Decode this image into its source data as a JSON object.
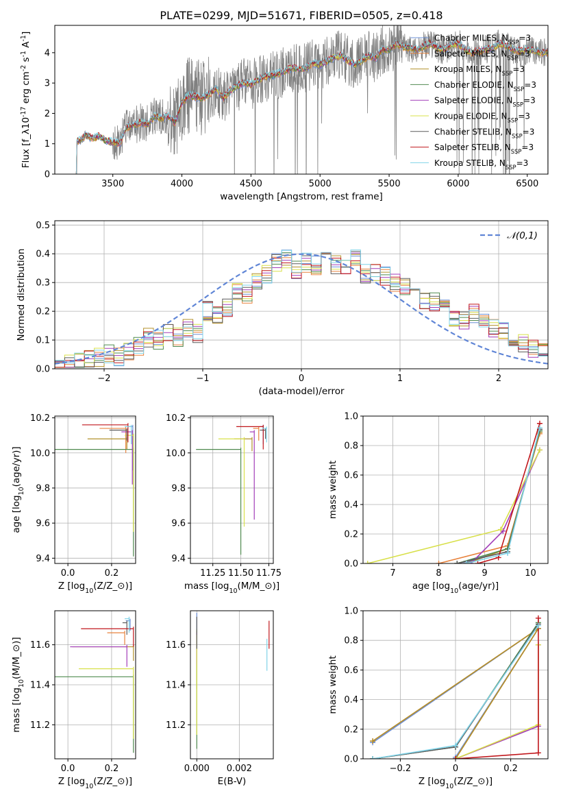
{
  "title": "PLATE=0299, MJD=51671, FIBERID=0505, z=0.418",
  "colors": {
    "models": [
      "#6b8fd6",
      "#e8823c",
      "#b3902a",
      "#4f8a4f",
      "#a13bb8",
      "#d8e04a",
      "#5a5a5a",
      "#c0161b",
      "#7fd3e8"
    ],
    "data_gray": "#808080",
    "normal_curve": "#5f85d6",
    "grid": "#b0b0b0"
  },
  "legend_spectrum": [
    "Chabrier MILES, N$_{SSP}$=3",
    "Salpeter MILES, N$_{SSP}$=3",
    "Kroupa MILES, N$_{SSP}$=3",
    "Chabrier ELODIE, N$_{SSP}$=3",
    "Salpeter ELODIE, N$_{SSP}$=3",
    "Kroupa ELODIE, N$_{SSP}$=3",
    "Chabrier STELIB, N$_{SSP}$=3",
    "Salpeter STELIB, N$_{SSP}$=3",
    "Kroupa STELIB, N$_{SSP}$=3"
  ],
  "legend_hist": "$\\mathcal{N}(0,1)$",
  "chart_data": [
    {
      "type": "line",
      "panel": "spectrum",
      "xlabel": "wavelength [Angstrom, rest frame]",
      "ylabel": "Flux [f$_\\lambda$10$^{-17}$ erg cm$^{-2}$ s$^{-1}$ A$^{-1}$]",
      "xlim": [
        3080,
        6650
      ],
      "ylim": [
        0,
        4.9
      ],
      "xticks": [
        3500,
        4000,
        4500,
        5000,
        5500,
        6000,
        6500
      ],
      "yticks": [
        0,
        1,
        2,
        3,
        4
      ],
      "model_continuum": {
        "x": [
          3230,
          3280,
          3300,
          3350,
          3400,
          3450,
          3500,
          3550,
          3600,
          3650,
          3700,
          3750,
          3800,
          3850,
          3900,
          3950,
          4000,
          4050,
          4100,
          4150,
          4200,
          4250,
          4300,
          4350,
          4400,
          4450,
          4500,
          4550,
          4600,
          4650,
          4700,
          4750,
          4800,
          4850,
          4900,
          4950,
          5000,
          5050,
          5100,
          5150,
          5200,
          5250,
          5300,
          5350,
          5400,
          5450,
          5500,
          5550,
          5600,
          5650,
          5700,
          5750,
          5800,
          5850,
          5900,
          5950,
          6000,
          6050,
          6100,
          6150,
          6200,
          6250,
          6300,
          6350,
          6400,
          6450,
          6500,
          6550,
          6600,
          6650
        ],
        "y": [
          1.05,
          1.15,
          1.3,
          1.18,
          1.25,
          1.1,
          1.05,
          1.0,
          1.55,
          1.6,
          1.7,
          1.65,
          1.9,
          1.85,
          1.9,
          1.7,
          2.35,
          2.6,
          2.55,
          2.5,
          2.65,
          2.8,
          2.5,
          2.75,
          2.9,
          3.0,
          2.95,
          3.1,
          3.2,
          3.25,
          3.3,
          3.4,
          3.5,
          3.45,
          3.5,
          3.65,
          3.6,
          3.7,
          3.85,
          3.9,
          3.75,
          3.6,
          3.7,
          3.9,
          3.8,
          4.1,
          4.1,
          4.3,
          4.2,
          4.15,
          4.1,
          4.2,
          4.3,
          4.15,
          4.1,
          4.25,
          4.3,
          4.1,
          4.0,
          4.05,
          4.1,
          4.15,
          4.3,
          4.2,
          4.1,
          4.05,
          4.1,
          4.05,
          4.0,
          4.0
        ]
      }
    },
    {
      "type": "line",
      "panel": "residual-histogram",
      "xlabel": "(data-model)/error",
      "ylabel": "Normed distribution",
      "xlim": [
        -2.5,
        2.5
      ],
      "ylim": [
        0,
        0.515
      ],
      "xticks": [
        -2,
        -1,
        0,
        1,
        2
      ],
      "yticks": [
        0.0,
        0.1,
        0.2,
        0.3,
        0.4,
        0.5
      ],
      "bin_width": 0.1,
      "hist_base": {
        "x": [
          -2.5,
          -2.4,
          -2.3,
          -2.2,
          -2.1,
          -2.0,
          -1.9,
          -1.8,
          -1.7,
          -1.6,
          -1.5,
          -1.4,
          -1.3,
          -1.2,
          -1.1,
          -1.0,
          -0.9,
          -0.8,
          -0.7,
          -0.6,
          -0.5,
          -0.4,
          -0.3,
          -0.2,
          -0.1,
          0.0,
          0.1,
          0.2,
          0.3,
          0.4,
          0.5,
          0.6,
          0.7,
          0.8,
          0.9,
          1.0,
          1.1,
          1.2,
          1.3,
          1.4,
          1.5,
          1.6,
          1.7,
          1.8,
          1.9,
          2.0,
          2.1,
          2.2,
          2.3,
          2.4
        ],
        "y": [
          0.02,
          0.02,
          0.03,
          0.04,
          0.04,
          0.05,
          0.04,
          0.06,
          0.08,
          0.11,
          0.1,
          0.12,
          0.11,
          0.14,
          0.12,
          0.2,
          0.18,
          0.21,
          0.27,
          0.26,
          0.31,
          0.33,
          0.37,
          0.38,
          0.34,
          0.37,
          0.36,
          0.42,
          0.36,
          0.35,
          0.38,
          0.33,
          0.33,
          0.32,
          0.3,
          0.29,
          0.27,
          0.24,
          0.23,
          0.22,
          0.18,
          0.17,
          0.19,
          0.16,
          0.14,
          0.13,
          0.1,
          0.09,
          0.07,
          0.06
        ]
      },
      "normal_curve": "N(0,1)"
    },
    {
      "type": "scatter",
      "panel": "age-vs-Z",
      "xlabel": "Z [log$_{10}$($Z/Z_\\odot$)]",
      "ylabel": "age  [log$_{10}$($age/yr$)]",
      "xlim": [
        -0.06,
        0.31
      ],
      "ylim": [
        9.37,
        10.21
      ],
      "xticks": [
        0.0,
        0.2
      ],
      "yticks": [
        9.4,
        9.6,
        9.8,
        10.0,
        10.2
      ],
      "points": [
        {
          "x": 0.297,
          "y": 10.15,
          "xerr_lo": 0.02,
          "yerr_lo": 0.25
        },
        {
          "x": 0.265,
          "y": 10.14,
          "xerr_lo": 0.12,
          "yerr_lo": 0.14
        },
        {
          "x": 0.27,
          "y": 10.08,
          "xerr_lo": 0.18,
          "yerr_lo": 0.06
        },
        {
          "x": 0.3,
          "y": 10.02,
          "xerr_lo": 0.36,
          "yerr_lo": 0.61
        },
        {
          "x": 0.295,
          "y": 10.12,
          "xerr_lo": 0.05,
          "yerr_lo": 0.3
        },
        {
          "x": 0.3,
          "y": 10.1,
          "xerr_lo": 0.04,
          "yerr_lo": 0.55
        },
        {
          "x": 0.27,
          "y": 10.13,
          "xerr_lo": 0.08,
          "yerr_lo": 0.06
        },
        {
          "x": 0.275,
          "y": 10.16,
          "xerr_lo": 0.21,
          "yerr_lo": 0.1
        },
        {
          "x": 0.29,
          "y": 10.15,
          "xerr_lo": 0.03,
          "yerr_lo": 0.1
        }
      ]
    },
    {
      "type": "scatter",
      "panel": "age-vs-mass",
      "xlabel": "mass [log$_{10}$($M/M_\\odot$)]",
      "xlim": [
        11.05,
        11.79
      ],
      "ylim": [
        9.37,
        10.21
      ],
      "xticks": [
        11.25,
        11.5,
        11.75
      ],
      "yticks": [
        9.4,
        9.6,
        9.8,
        10.0,
        10.2
      ],
      "points": [
        {
          "x": 11.7,
          "y": 10.15,
          "xerr_lo": 0.03,
          "yerr_lo": 0.1
        },
        {
          "x": 11.66,
          "y": 10.14,
          "xerr_lo": 0.05,
          "yerr_lo": 0.07
        },
        {
          "x": 11.6,
          "y": 10.08,
          "xerr_lo": 0.16,
          "yerr_lo": 0.07
        },
        {
          "x": 11.5,
          "y": 10.02,
          "xerr_lo": 0.4,
          "yerr_lo": 0.6
        },
        {
          "x": 11.62,
          "y": 10.12,
          "xerr_lo": 0.04,
          "yerr_lo": 0.5
        },
        {
          "x": 11.53,
          "y": 10.08,
          "xerr_lo": 0.23,
          "yerr_lo": 0.5
        },
        {
          "x": 11.72,
          "y": 10.13,
          "xerr_lo": 0.05,
          "yerr_lo": 0.05
        },
        {
          "x": 11.7,
          "y": 10.15,
          "xerr_lo": 0.24,
          "yerr_lo": 0.13
        },
        {
          "x": 11.73,
          "y": 10.14,
          "xerr_lo": 0.04,
          "yerr_lo": 0.08
        }
      ]
    },
    {
      "type": "line",
      "panel": "mass-weight-vs-age",
      "xlabel": "age  [log$_{10}$($age/yr$)]",
      "ylabel": "mass weight",
      "xlim": [
        6.35,
        10.38
      ],
      "ylim": [
        0,
        1.0
      ],
      "xticks": [
        7,
        8,
        9,
        10
      ],
      "yticks": [
        0.0,
        0.2,
        0.4,
        0.6,
        0.8,
        1.0
      ],
      "series": [
        {
          "x": [
            8.55,
            9.5,
            10.2
          ],
          "y": [
            0.0,
            0.1,
            0.9
          ]
        },
        {
          "x": [
            8.0,
            9.5,
            10.2
          ],
          "y": [
            0.0,
            0.12,
            0.88
          ]
        },
        {
          "x": [
            8.6,
            9.5,
            10.2
          ],
          "y": [
            0.0,
            0.1,
            0.89
          ]
        },
        {
          "x": [
            8.4,
            9.5,
            10.2
          ],
          "y": [
            0.0,
            0.1,
            0.9
          ]
        },
        {
          "x": [
            8.7,
            9.4,
            10.2
          ],
          "y": [
            0.0,
            0.22,
            0.77
          ]
        },
        {
          "x": [
            6.45,
            9.35,
            10.2
          ],
          "y": [
            0.0,
            0.23,
            0.77
          ]
        },
        {
          "x": [
            8.4,
            9.5,
            10.2
          ],
          "y": [
            0.0,
            0.08,
            0.91
          ]
        },
        {
          "x": [
            8.85,
            9.3,
            10.2
          ],
          "y": [
            0.0,
            0.04,
            0.95
          ]
        },
        {
          "x": [
            8.6,
            9.5,
            10.2
          ],
          "y": [
            0.0,
            0.07,
            0.92
          ]
        }
      ]
    },
    {
      "type": "scatter",
      "panel": "mass-vs-Z",
      "xlabel": "Z [log$_{10}$($Z/Z_\\odot$)]",
      "ylabel": "mass [log$_{10}$($M/M_\\odot$)]",
      "xlim": [
        -0.06,
        0.31
      ],
      "ylim": [
        11.03,
        11.77
      ],
      "xticks": [
        0.0,
        0.2
      ],
      "yticks": [
        11.2,
        11.4,
        11.6
      ],
      "points": [
        {
          "x": 0.285,
          "y": 11.72,
          "xerr_lo": 0.02,
          "yerr_lo": 0.05
        },
        {
          "x": 0.26,
          "y": 11.66,
          "xerr_lo": 0.08,
          "yerr_lo": 0.06
        },
        {
          "x": 0.3,
          "y": 11.59,
          "xerr_lo": 0.28,
          "yerr_lo": 0.07
        },
        {
          "x": 0.3,
          "y": 11.44,
          "xerr_lo": 0.36,
          "yerr_lo": 0.38
        },
        {
          "x": 0.27,
          "y": 11.59,
          "xerr_lo": 0.26,
          "yerr_lo": 0.1
        },
        {
          "x": 0.3,
          "y": 11.48,
          "xerr_lo": 0.25,
          "yerr_lo": 0.35
        },
        {
          "x": 0.27,
          "y": 11.71,
          "xerr_lo": 0.02,
          "yerr_lo": 0.06
        },
        {
          "x": 0.3,
          "y": 11.68,
          "xerr_lo": 0.24,
          "yerr_lo": 0.09
        },
        {
          "x": 0.28,
          "y": 11.73,
          "xerr_lo": 0.02,
          "yerr_lo": 0.07
        }
      ]
    },
    {
      "type": "scatter",
      "panel": "mass-vs-EBV",
      "xlabel": "E(B-V)",
      "xlim": [
        -0.0003,
        0.0036
      ],
      "ylim": [
        11.03,
        11.77
      ],
      "xticks": [
        0.0,
        0.002
      ],
      "yticks": [
        11.2,
        11.4,
        11.6
      ],
      "points": [
        {
          "x": 0.0,
          "y": 11.72,
          "yerr": 0.04
        },
        {
          "x": 0.0,
          "y": 11.62,
          "yerr": 0.05
        },
        {
          "x": 0.0,
          "y": 11.5,
          "yerr": 0.12
        },
        {
          "x": 0.0,
          "y": 11.38,
          "yerr": 0.3
        },
        {
          "x": 0.0,
          "y": 11.58,
          "yerr": 0.08
        },
        {
          "x": 0.0,
          "y": 11.4,
          "yerr": 0.25
        },
        {
          "x": 0.0,
          "y": 11.66,
          "yerr": 0.08
        },
        {
          "x": 0.0034,
          "y": 11.65,
          "yerr": 0.07
        },
        {
          "x": 0.0033,
          "y": 11.55,
          "yerr": 0.08
        }
      ]
    },
    {
      "type": "line",
      "panel": "mass-weight-vs-Z",
      "xlabel": "Z [log$_{10}$($Z/Z_\\odot$)]",
      "ylabel": "mass weight",
      "xlim": [
        -0.335,
        0.335
      ],
      "ylim": [
        0,
        1.0
      ],
      "xticks": [
        -0.2,
        0.0,
        0.2
      ],
      "yticks": [
        0.0,
        0.2,
        0.4,
        0.6,
        0.8,
        1.0
      ],
      "series": [
        {
          "x": [
            -0.3,
            0.3,
            0.0
          ],
          "y": [
            0.11,
            0.88,
            0.01
          ]
        },
        {
          "x": [
            -0.3,
            0.3,
            0.0
          ],
          "y": [
            0.12,
            0.88,
            0.0
          ]
        },
        {
          "x": [
            -0.3,
            0.3,
            0.0
          ],
          "y": [
            0.12,
            0.88,
            0.0
          ]
        },
        {
          "x": [
            -0.3,
            0.0,
            0.3
          ],
          "y": [
            0.0,
            0.08,
            0.92
          ]
        },
        {
          "x": [
            0.0,
            0.3,
            0.3
          ],
          "y": [
            0.0,
            0.22,
            0.77
          ]
        },
        {
          "x": [
            0.0,
            0.3,
            0.3
          ],
          "y": [
            0.0,
            0.23,
            0.77
          ]
        },
        {
          "x": [
            -0.3,
            0.0,
            0.3
          ],
          "y": [
            0.0,
            0.08,
            0.91
          ]
        },
        {
          "x": [
            0.0,
            0.3,
            0.3
          ],
          "y": [
            0.0,
            0.04,
            0.95
          ]
        },
        {
          "x": [
            -0.3,
            0.0,
            0.3
          ],
          "y": [
            0.0,
            0.09,
            0.9
          ]
        }
      ]
    }
  ]
}
